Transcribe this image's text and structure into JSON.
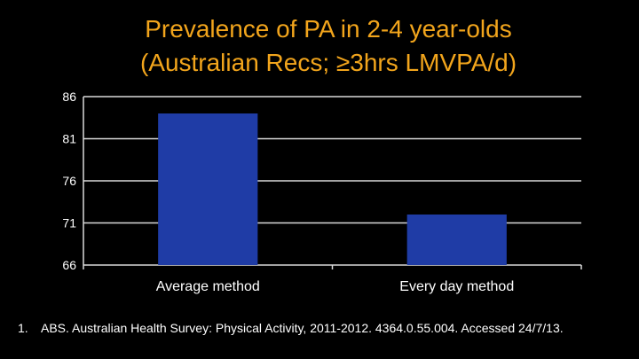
{
  "title": {
    "line1": "Prevalence of PA in 2-4 year-olds",
    "line2": "(Australian Recs; ≥3hrs LMVPA/d)"
  },
  "colors": {
    "background": "#000000",
    "title": "#f2a51c",
    "bar": "#1f3ca6",
    "text": "#ffffff",
    "grid": "#d9d9d9"
  },
  "chart_data": {
    "type": "bar",
    "categories": [
      "Average method",
      "Every day method"
    ],
    "values": [
      84,
      72
    ],
    "ylim": [
      66,
      86
    ],
    "yticks": [
      "86",
      "81",
      "76",
      "71",
      "66"
    ],
    "grid": true,
    "legend": "none"
  },
  "footnote": {
    "number": "1.",
    "text": "ABS. Australian Health Survey: Physical Activity, 2011-2012. 4364.0.55.004. Accessed 24/7/13."
  }
}
